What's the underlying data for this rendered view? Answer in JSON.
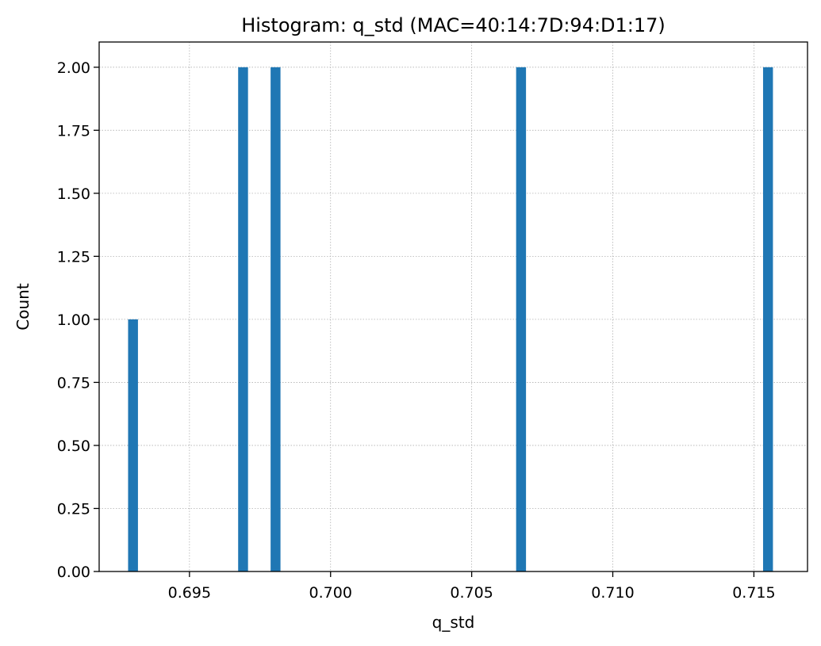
{
  "chart_data": {
    "type": "bar",
    "title": "Histogram: q_std (MAC=40:14:7D:94:D1:17)",
    "xlabel": "q_std",
    "ylabel": "Count",
    "xlim": [
      0.6918,
      0.7169
    ],
    "ylim": [
      0,
      2.1
    ],
    "grid": true,
    "bin_width": 0.00035,
    "bar_color": "#1f77b4",
    "bars": [
      {
        "x": 0.693,
        "count": 1
      },
      {
        "x": 0.6969,
        "count": 2
      },
      {
        "x": 0.69805,
        "count": 2
      },
      {
        "x": 0.70675,
        "count": 2
      },
      {
        "x": 0.7155,
        "count": 2
      }
    ],
    "xticks": [
      "0.695",
      "0.700",
      "0.705",
      "0.710",
      "0.715"
    ],
    "yticks": [
      "0.00",
      "0.25",
      "0.50",
      "0.75",
      "1.00",
      "1.25",
      "1.50",
      "1.75",
      "2.00"
    ]
  }
}
